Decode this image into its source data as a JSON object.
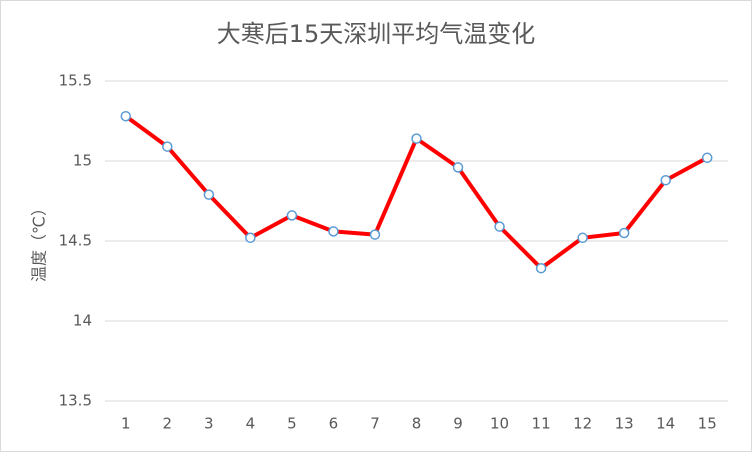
{
  "chart_data": {
    "type": "line",
    "title": "大寒后15天深圳平均气温变化",
    "y_label": "温度（℃）",
    "categories": [
      "1",
      "2",
      "3",
      "4",
      "5",
      "6",
      "7",
      "8",
      "9",
      "10",
      "11",
      "12",
      "13",
      "14",
      "15"
    ],
    "series": [
      {
        "color": "#ff0000",
        "marker_color": "#5b9bd5",
        "values": [
          15.28,
          15.09,
          14.79,
          14.52,
          14.66,
          14.56,
          14.54,
          15.14,
          14.96,
          14.59,
          14.33,
          14.52,
          14.55,
          14.88,
          15.02
        ]
      }
    ],
    "ylim": [
      13.5,
      15.5
    ],
    "yticks": [
      13.5,
      14,
      14.5,
      15,
      15.5
    ],
    "grid": true
  }
}
